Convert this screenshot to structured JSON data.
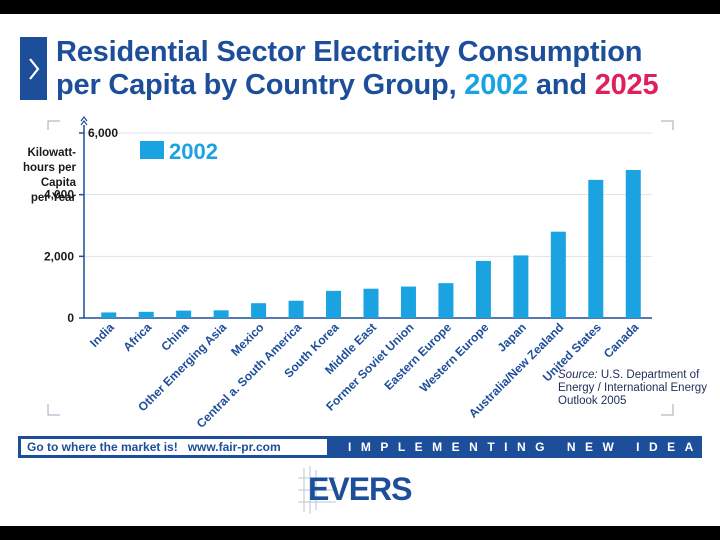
{
  "title": {
    "line1": "Residential Sector Electricity Consumption",
    "line2_prefix": "per Capita by Country Group, ",
    "year_a": "2002",
    "line2_mid": " and ",
    "year_b": "2025"
  },
  "ylabel_lines": [
    "Kilowatt-",
    "hours per",
    "Capita",
    "per Year"
  ],
  "source": {
    "label": "Source:",
    "text": " U.S. Department of Energy / International Energy Outlook 2005"
  },
  "banner": {
    "left_text": "Go to where the market is!   www.fair-pr.com",
    "right_text": "IMPLEMENTING NEW IDEAS"
  },
  "logo": {
    "text": "EVERS"
  },
  "colors": {
    "title_blue": "#1d4e9a",
    "bar_2002": "#1aa3e0",
    "year_2025": "#e0205a"
  },
  "icons": {
    "title_marker": "chevron-right-icon"
  },
  "chart_data": {
    "type": "bar",
    "categories": [
      "India",
      "Africa",
      "China",
      "Other Emerging Asia",
      "Mexico",
      "Central a. South America",
      "South Korea",
      "Middle East",
      "Former Soviet Union",
      "Eastern Europe",
      "Western Europe",
      "Japan",
      "Australia/New Zealand",
      "United States",
      "Canada"
    ],
    "series": [
      {
        "name": "2002",
        "values": [
          180,
          200,
          240,
          250,
          480,
          560,
          880,
          950,
          1020,
          1130,
          1850,
          2030,
          2800,
          4480,
          4800
        ]
      }
    ],
    "yticks": [
      "0",
      "2,000",
      "4,000",
      "6,000"
    ],
    "ylim": [
      0,
      6000
    ],
    "ylabel": "Kilowatt-hours per Capita per Year",
    "legend_position": "top-left",
    "grid": true
  }
}
